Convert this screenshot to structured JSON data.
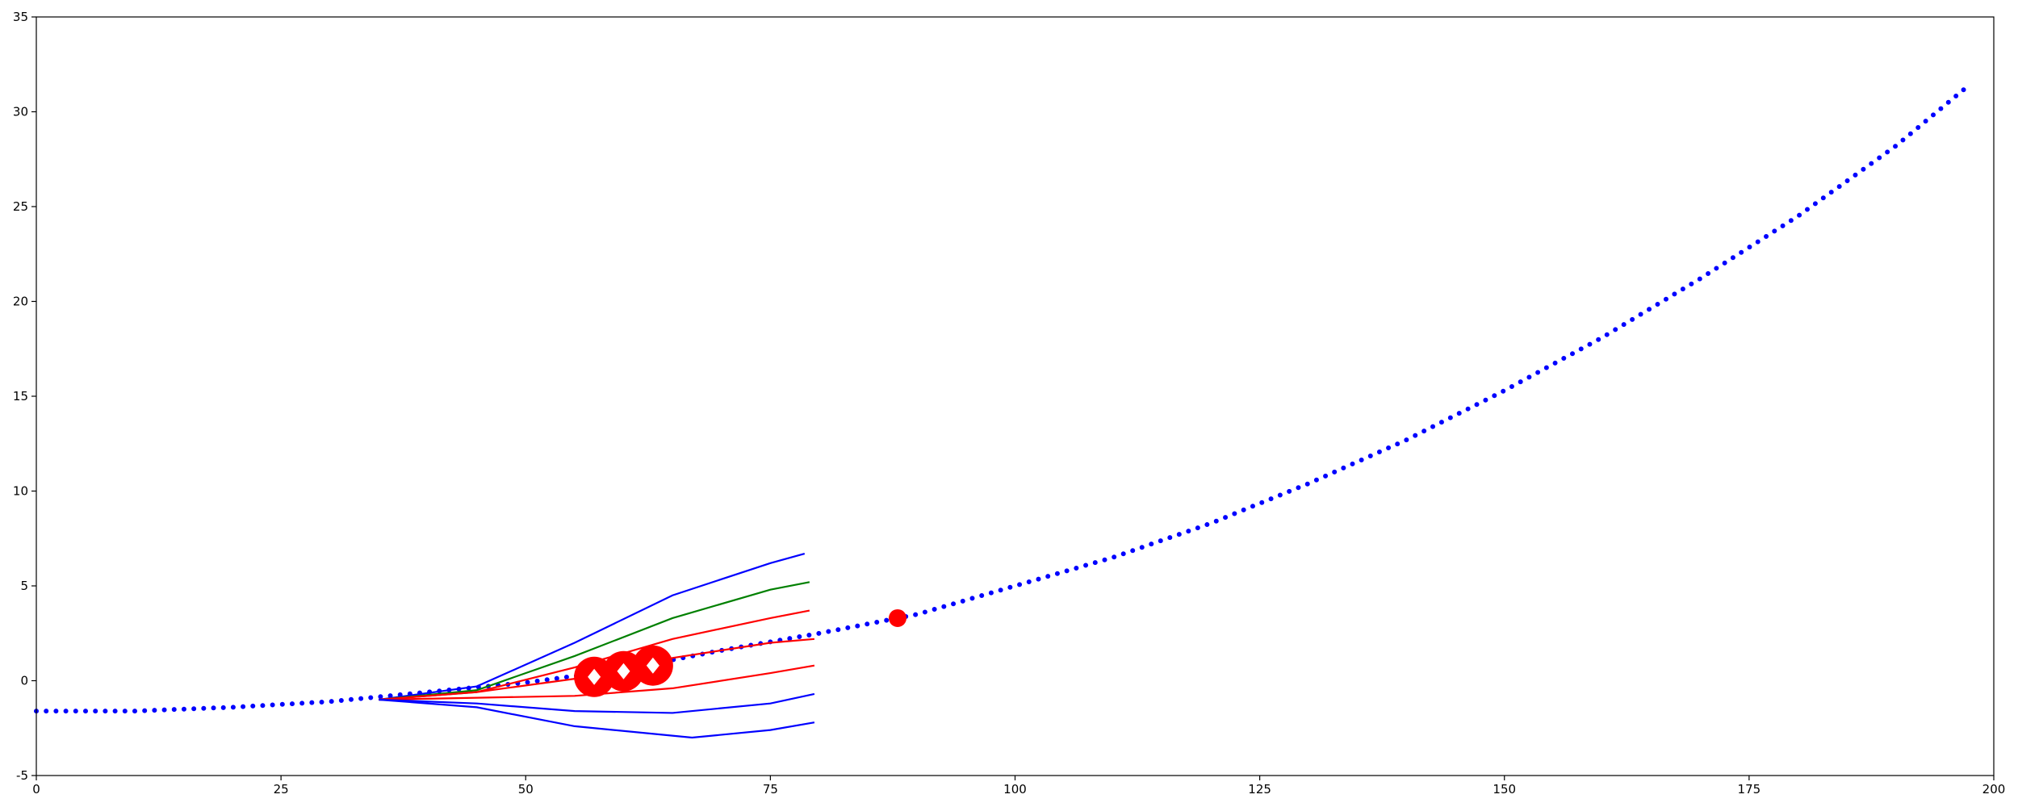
{
  "chart_data": {
    "type": "line",
    "xlim": [
      0,
      200
    ],
    "xticks": [
      0,
      25,
      50,
      75,
      100,
      125,
      150,
      175,
      200
    ],
    "ylim": [
      -5,
      35
    ],
    "yticks": [
      -5,
      0,
      5,
      10,
      15,
      20,
      25,
      30,
      35
    ],
    "series": [
      {
        "color": "#0000ff",
        "style": "dotted",
        "x": [
          0,
          10,
          20,
          30,
          40,
          50,
          60,
          70,
          80,
          90,
          100,
          110,
          120,
          130,
          140,
          150,
          160,
          170,
          180,
          190,
          197
        ],
        "values": [
          -1.6,
          -1.6,
          -1.4,
          -1.1,
          -0.6,
          -0.1,
          0.6,
          1.6,
          2.5,
          3.5,
          5.0,
          6.5,
          8.3,
          10.4,
          12.7,
          15.3,
          18.1,
          21.2,
          24.5,
          28.2,
          31.2
        ]
      },
      {
        "color": "#0000ff",
        "style": "solid",
        "x": [
          35,
          45,
          55,
          65,
          75,
          78.5
        ],
        "values": [
          -1,
          -0.3,
          2.0,
          4.5,
          6.2,
          6.7
        ]
      },
      {
        "color": "#008000",
        "style": "solid",
        "x": [
          35,
          45,
          55,
          65,
          75,
          79
        ],
        "values": [
          -1,
          -0.5,
          1.3,
          3.3,
          4.8,
          5.2
        ]
      },
      {
        "color": "#ff0000",
        "style": "solid",
        "x": [
          35,
          45,
          55,
          65,
          75,
          79
        ],
        "values": [
          -1,
          -0.6,
          0.7,
          2.2,
          3.3,
          3.7
        ]
      },
      {
        "color": "#ff0000",
        "style": "solid",
        "x": [
          35,
          45,
          55,
          65,
          75,
          79.5
        ],
        "values": [
          -1,
          -0.6,
          0.1,
          1.2,
          2.0,
          2.2
        ]
      },
      {
        "color": "#ff0000",
        "style": "solid",
        "x": [
          35,
          45,
          55,
          65,
          75,
          79.5
        ],
        "values": [
          -1,
          -0.9,
          -0.8,
          -0.4,
          0.4,
          0.8
        ]
      },
      {
        "color": "#0000ff",
        "style": "solid",
        "x": [
          35,
          45,
          55,
          65,
          75,
          79.5
        ],
        "values": [
          -1,
          -1.2,
          -1.6,
          -1.7,
          -1.2,
          -0.7
        ]
      },
      {
        "color": "#0000ff",
        "style": "solid",
        "x": [
          35,
          45,
          55,
          67,
          75,
          79.5
        ],
        "values": [
          -1,
          -1.4,
          -2.4,
          -3.0,
          -2.6,
          -2.2
        ]
      },
      {
        "color": "#ff0000",
        "style": "obstacle",
        "x": [
          57,
          60,
          63
        ],
        "values": [
          0.2,
          0.5,
          0.8
        ]
      },
      {
        "color": "#ff0000",
        "style": "point",
        "x": [
          88
        ],
        "values": [
          3.3
        ]
      }
    ]
  }
}
